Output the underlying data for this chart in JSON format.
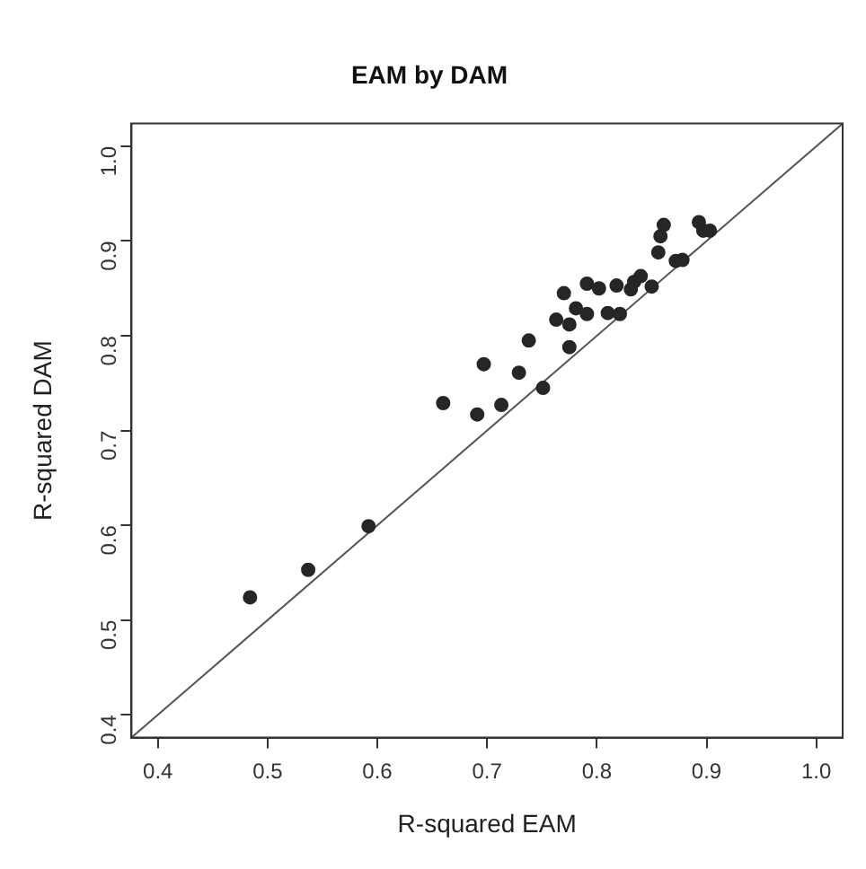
{
  "chart_data": {
    "type": "scatter",
    "title": "EAM by DAM",
    "xlabel": "R-squared EAM",
    "ylabel": "R-squared DAM",
    "xlim": [
      0.376,
      1.024
    ],
    "ylim": [
      0.376,
      1.024
    ],
    "xticks": [
      0.4,
      0.5,
      0.6,
      0.7,
      0.8,
      0.9,
      {
        "value": 1.0,
        "label": "1.0"
      }
    ],
    "yticks": [
      0.4,
      0.5,
      0.6,
      0.7,
      0.8,
      0.9,
      {
        "value": 1.0,
        "label": "1.0"
      }
    ],
    "marker": "circle",
    "legend": false,
    "series": [
      {
        "color": "#262626",
        "x": [
          0.484,
          0.537,
          0.592,
          0.66,
          0.691,
          0.697,
          0.713,
          0.729,
          0.751,
          0.738,
          0.763,
          0.77,
          0.775,
          0.775,
          0.781,
          0.791,
          0.791,
          0.802,
          0.81,
          0.818,
          0.821,
          0.831,
          0.834,
          0.84,
          0.85,
          0.856,
          0.858,
          0.861,
          0.872,
          0.878,
          0.893,
          0.897,
          0.903
        ],
        "values": [
          0.524,
          0.553,
          0.599,
          0.729,
          0.717,
          0.77,
          0.727,
          0.761,
          0.745,
          0.795,
          0.817,
          0.845,
          0.812,
          0.788,
          0.829,
          0.855,
          0.823,
          0.85,
          0.824,
          0.853,
          0.823,
          0.849,
          0.857,
          0.863,
          0.852,
          0.888,
          0.905,
          0.917,
          0.879,
          0.88,
          0.92,
          0.911,
          0.911
        ]
      },
      {
        "type": "line",
        "color": "#555555",
        "marker": "none",
        "x": [
          0.376,
          1.024
        ],
        "values": [
          0.376,
          1.024
        ]
      }
    ]
  }
}
